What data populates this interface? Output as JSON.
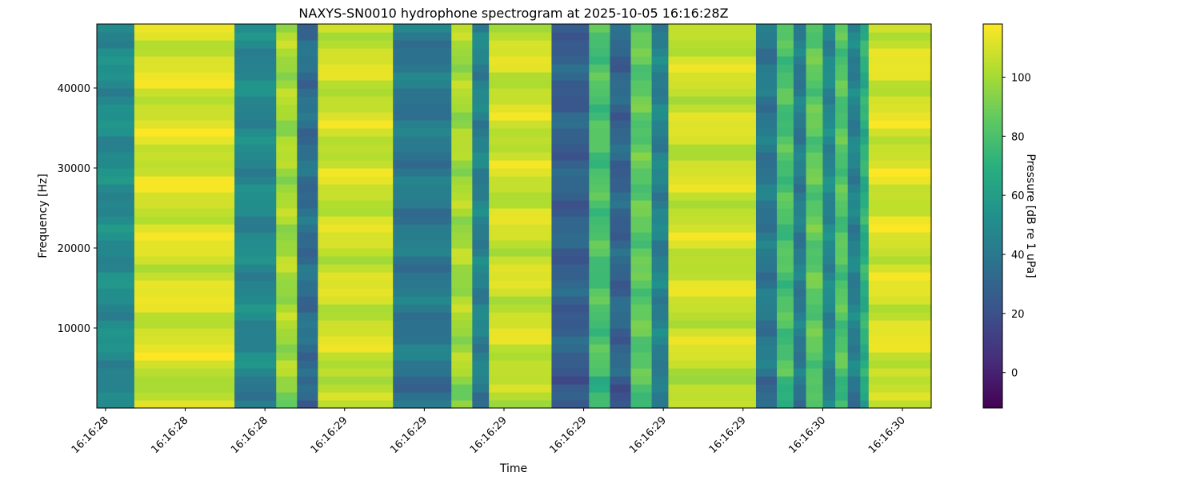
{
  "chart_data": {
    "type": "heatmap",
    "title": "NAXYS-SN0010 hydrophone spectrogram at 2025-10-05 16:16:28Z",
    "xlabel": "Time",
    "ylabel": "Frequency [Hz]",
    "colorbar_label": "Pressure [dB re 1 uPa]",
    "colormap": "viridis",
    "clim": [
      -12,
      118
    ],
    "ylim": [
      0,
      48000
    ],
    "y_ticks": [
      10000,
      20000,
      30000,
      40000
    ],
    "y_tick_labels": [
      "10000",
      "20000",
      "30000",
      "40000"
    ],
    "x_tick_labels": [
      "16:16:28",
      "16:16:28",
      "16:16:28",
      "16:16:29",
      "16:16:29",
      "16:16:29",
      "16:16:29",
      "16:16:29",
      "16:16:29",
      "16:16:30",
      "16:16:30"
    ],
    "colorbar_ticks": [
      0,
      20,
      40,
      60,
      80,
      100
    ],
    "colorbar_tick_labels": [
      "0",
      "20",
      "40",
      "60",
      "80",
      "100"
    ],
    "time_segments": [
      {
        "t0": 0.0,
        "t1": 0.045,
        "level": 50
      },
      {
        "t0": 0.045,
        "t1": 0.165,
        "level": 110
      },
      {
        "t0": 0.165,
        "t1": 0.215,
        "level": 48
      },
      {
        "t0": 0.215,
        "t1": 0.24,
        "level": 100
      },
      {
        "t0": 0.24,
        "t1": 0.265,
        "level": 35
      },
      {
        "t0": 0.265,
        "t1": 0.355,
        "level": 108
      },
      {
        "t0": 0.355,
        "t1": 0.425,
        "level": 40
      },
      {
        "t0": 0.425,
        "t1": 0.45,
        "level": 100
      },
      {
        "t0": 0.45,
        "t1": 0.47,
        "level": 45
      },
      {
        "t0": 0.47,
        "t1": 0.545,
        "level": 108
      },
      {
        "t0": 0.545,
        "t1": 0.59,
        "level": 28
      },
      {
        "t0": 0.59,
        "t1": 0.615,
        "level": 80
      },
      {
        "t0": 0.615,
        "t1": 0.64,
        "level": 30
      },
      {
        "t0": 0.64,
        "t1": 0.665,
        "level": 85
      },
      {
        "t0": 0.665,
        "t1": 0.685,
        "level": 45
      },
      {
        "t0": 0.685,
        "t1": 0.79,
        "level": 108
      },
      {
        "t0": 0.79,
        "t1": 0.815,
        "level": 40
      },
      {
        "t0": 0.815,
        "t1": 0.835,
        "level": 80
      },
      {
        "t0": 0.835,
        "t1": 0.85,
        "level": 42
      },
      {
        "t0": 0.85,
        "t1": 0.87,
        "level": 85
      },
      {
        "t0": 0.87,
        "t1": 0.885,
        "level": 48
      },
      {
        "t0": 0.885,
        "t1": 0.9,
        "level": 82
      },
      {
        "t0": 0.9,
        "t1": 0.915,
        "level": 45
      },
      {
        "t0": 0.915,
        "t1": 0.925,
        "level": 70
      },
      {
        "t0": 0.925,
        "t1": 1.0,
        "level": 110
      }
    ]
  }
}
